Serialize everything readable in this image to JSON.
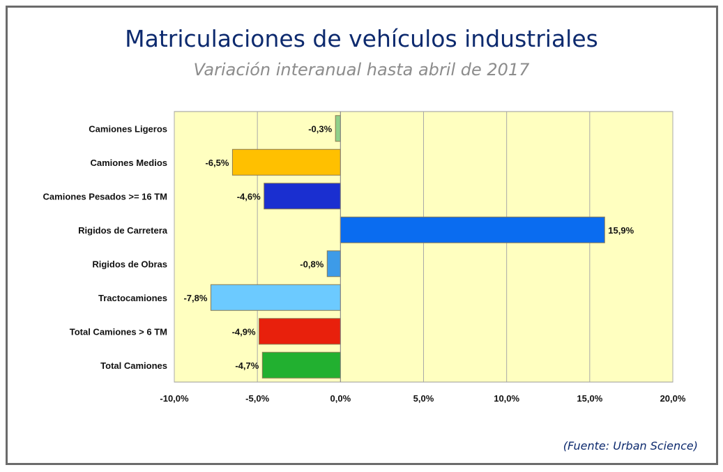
{
  "chart_data": {
    "type": "bar",
    "orientation": "horizontal",
    "title": "Matriculaciones de vehículos industriales",
    "subtitle": "Variación interanual hasta abril de 2017",
    "source": "(Fuente: Urban Science)",
    "categories": [
      "Camiones Ligeros",
      "Camiones Medios",
      "Camiones Pesados >= 16 TM",
      "Rigidos de Carretera",
      "Rigidos de Obras",
      "Tractocamiones",
      "Total Camiones  > 6 TM",
      "Total Camiones"
    ],
    "values": [
      -0.3,
      -6.5,
      -4.6,
      15.9,
      -0.8,
      -7.8,
      -4.9,
      -4.7
    ],
    "data_labels": [
      "-0,3%",
      "-6,5%",
      "-4,6%",
      "15,9%",
      "-0,8%",
      "-7,8%",
      "-4,9%",
      "-4,7%"
    ],
    "colors": [
      "#8fd08a",
      "#ffc000",
      "#1a2fd0",
      "#0a6cf0",
      "#3d9be8",
      "#6ccaff",
      "#e8200c",
      "#22b030"
    ],
    "xlim": [
      -10,
      20
    ],
    "xticks": [
      -10,
      -5,
      0,
      5,
      10,
      15,
      20
    ],
    "xtick_labels": [
      "-10,0%",
      "-5,0%",
      "0,0%",
      "5,0%",
      "10,0%",
      "15,0%",
      "20,0%"
    ],
    "grid": "vertical",
    "plot_background": "#ffffc0",
    "legend": "none"
  }
}
